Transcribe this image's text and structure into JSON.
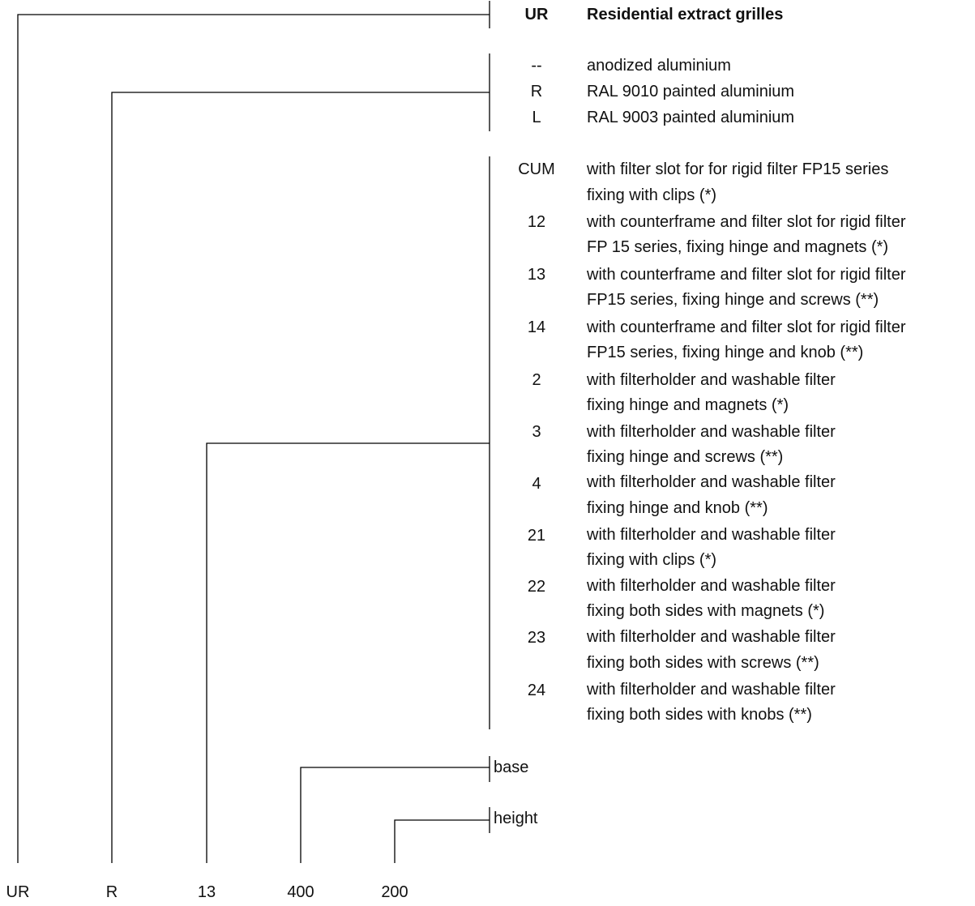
{
  "header": {
    "code": "UR",
    "title": "Residential extract grilles"
  },
  "finish_options": [
    {
      "code": "--",
      "description": "anodized aluminium"
    },
    {
      "code": "R",
      "description": "RAL 9010 painted aluminium"
    },
    {
      "code": "L",
      "description": "RAL 9003 painted aluminium"
    }
  ],
  "version_options": [
    {
      "code": "CUM",
      "line1": "with filter slot for for rigid filter FP15 series",
      "line2": "fixing with clips (*)"
    },
    {
      "code": "12",
      "line1": "with counterframe and filter slot for rigid filter",
      "line2": "FP 15 series,  fixing hinge and magnets (*)"
    },
    {
      "code": "13",
      "line1": "with counterframe and filter slot for rigid filter",
      "line2": "FP15 series, fixing hinge and screws (**)"
    },
    {
      "code": "14",
      "line1": "with counterframe and filter slot for rigid filter",
      "line2": "FP15 series, fixing hinge and knob (**)"
    },
    {
      "code": "2",
      "line1": "with filterholder and washable filter",
      "line2": "fixing hinge and magnets (*)"
    },
    {
      "code": "3",
      "line1": "with filterholder and washable filter",
      "line2": "fixing hinge and screws (**)"
    },
    {
      "code": "4",
      "line1": "with filterholder and washable filter",
      "line2": "fixing hinge and knob (**)"
    },
    {
      "code": "21",
      "line1": "with filterholder and washable filter",
      "line2": "fixing with clips (*)"
    },
    {
      "code": "22",
      "line1": "with filterholder and washable filter",
      "line2": "fixing both sides with magnets (*)"
    },
    {
      "code": "23",
      "line1": "with filterholder and washable filter",
      "line2": "fixing both sides with screws (**)"
    },
    {
      "code": "24",
      "line1": "with filterholder and washable filter",
      "line2": "fixing both sides with knobs (**)"
    }
  ],
  "dimension_labels": {
    "base": "base",
    "height": "height"
  },
  "example_code": [
    "UR",
    "R",
    "13",
    "400",
    "200"
  ]
}
